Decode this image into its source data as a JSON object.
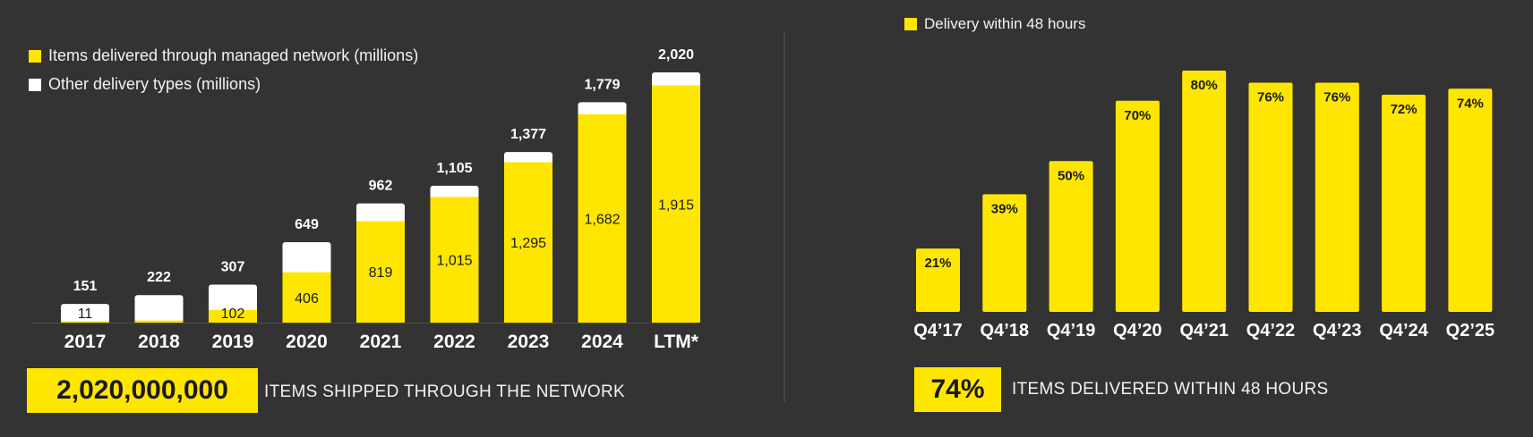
{
  "colors": {
    "background": "#333333",
    "accent": "#ffe600",
    "other": "#ffffff",
    "dark_text": "#1a1a1a"
  },
  "left_panel": {
    "legend": [
      {
        "label": "Items delivered through managed network (millions)",
        "color": "#ffe600"
      },
      {
        "label": "Other delivery types (millions)",
        "color": "#ffffff"
      }
    ],
    "stat_value": "2,020,000,000",
    "stat_caption": "ITEMS SHIPPED THROUGH THE NETWORK"
  },
  "right_panel": {
    "legend": [
      {
        "label": "Delivery within 48 hours",
        "color": "#ffe600"
      }
    ],
    "stat_value": "74%",
    "stat_caption": "ITEMS DELIVERED WITHIN 48 HOURS"
  },
  "chart_data": [
    {
      "type": "bar",
      "stacked": true,
      "categories": [
        "2017",
        "2018",
        "2019",
        "2020",
        "2021",
        "2022",
        "2023",
        "2024",
        "LTM*"
      ],
      "series": [
        {
          "name": "Items delivered through managed network (millions)",
          "values": [
            11,
            17,
            102,
            406,
            819,
            1015,
            1295,
            1682,
            1915
          ],
          "value_labels": [
            "11",
            "",
            "102",
            "406",
            "819",
            "1,015",
            "1,295",
            "1,682",
            "1,915"
          ],
          "color": "#ffe600"
        },
        {
          "name": "Other delivery types (millions)",
          "values": [
            140,
            205,
            205,
            243,
            143,
            90,
            82,
            97,
            105
          ],
          "color": "#ffffff"
        }
      ],
      "totals": [
        151,
        222,
        307,
        649,
        962,
        1105,
        1377,
        1779,
        2020
      ],
      "total_labels": [
        "151",
        "222",
        "307",
        "649",
        "962",
        "1,105",
        "1,377",
        "1,779",
        "2,020"
      ],
      "ylim": [
        0,
        2020
      ],
      "grid": false,
      "legend_position": "top-left"
    },
    {
      "type": "bar",
      "categories": [
        "Q4’17",
        "Q4’18",
        "Q4’19",
        "Q4’20",
        "Q4’21",
        "Q4’22",
        "Q4’23",
        "Q4’24",
        "Q2’25"
      ],
      "series": [
        {
          "name": "Delivery within 48 hours",
          "values": [
            21,
            39,
            50,
            70,
            80,
            76,
            76,
            72,
            74
          ],
          "value_labels": [
            "21%",
            "39%",
            "50%",
            "70%",
            "80%",
            "76%",
            "76%",
            "72%",
            "74%"
          ],
          "color": "#ffe600"
        }
      ],
      "ylim": [
        0,
        80
      ],
      "grid": false,
      "legend_position": "top-left"
    }
  ]
}
